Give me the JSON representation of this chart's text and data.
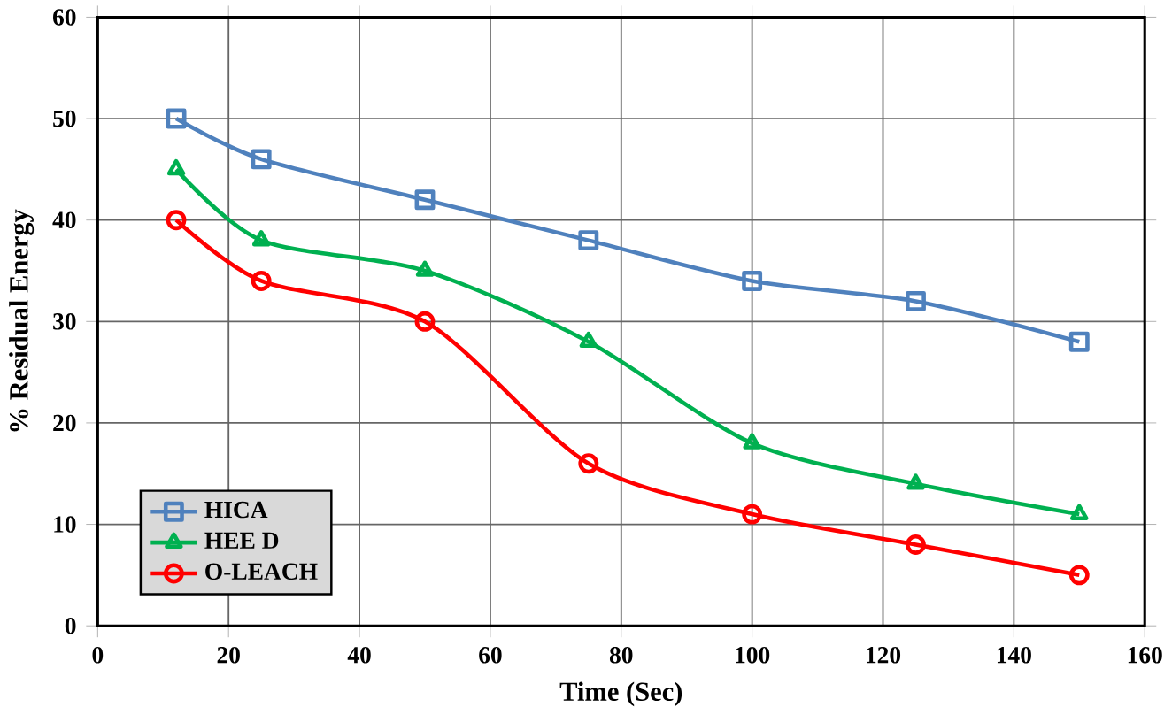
{
  "chart_data": {
    "type": "line",
    "xlabel": "Time (Sec)",
    "ylabel": "% Residual Energy",
    "x": [
      12,
      25,
      50,
      75,
      100,
      125,
      150
    ],
    "xlim": [
      0,
      160
    ],
    "xticks": [
      0,
      20,
      40,
      60,
      80,
      100,
      120,
      140,
      160
    ],
    "ylim": [
      0,
      60
    ],
    "yticks": [
      0,
      10,
      20,
      30,
      40,
      50,
      60
    ],
    "grid": true,
    "legend": "bottom left",
    "line_style": "solid",
    "series": [
      {
        "name": "HICA",
        "color": "#4f81bd",
        "marker": "square",
        "values": [
          50,
          46,
          42,
          38,
          34,
          32,
          28
        ]
      },
      {
        "name": "HEE D",
        "color": "#00b050",
        "marker": "triangle",
        "values": [
          45,
          38,
          35,
          28,
          18,
          14,
          11
        ]
      },
      {
        "name": "O-LEACH",
        "color": "#ff0000",
        "marker": "circle",
        "values": [
          40,
          34,
          30,
          16,
          11,
          8,
          5
        ]
      }
    ]
  }
}
